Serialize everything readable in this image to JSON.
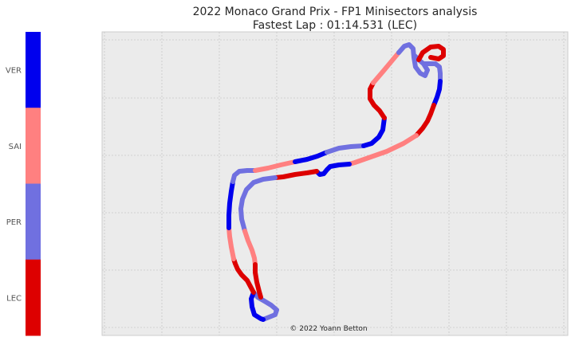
{
  "chart_data": {
    "type": "scatter",
    "title": "2022 Monaco Grand Prix - FP1 Minisectors analysis",
    "subtitle": "Fastest Lap : 01:14.531 (LEC)",
    "credit": "© 2022 Yoann Betton",
    "grid": true,
    "legend": "left colorbar",
    "drivers": [
      {
        "name": "VER",
        "color": "#0000ee"
      },
      {
        "name": "SAI",
        "color": "#ff8080"
      },
      {
        "name": "PER",
        "color": "#7070e0"
      },
      {
        "name": "LEC",
        "color": "#dd0000"
      }
    ],
    "colorbar_order_top_to_bottom": [
      "VER",
      "SAI",
      "PER",
      "LEC"
    ],
    "track_segments": [
      {
        "driver": "PER",
        "points": [
          [
            330,
            401
          ],
          [
            345,
            395
          ],
          [
            347,
            389
          ],
          [
            340,
            383
          ],
          [
            330,
            377
          ],
          [
            323,
            373
          ],
          [
            318,
            367
          ]
        ]
      },
      {
        "driver": "VER",
        "points": [
          [
            318,
            367
          ],
          [
            315,
            375
          ],
          [
            316,
            385
          ],
          [
            319,
            395
          ],
          [
            327,
            400
          ],
          [
            330,
            401
          ]
        ]
      },
      {
        "driver": "LEC",
        "points": [
          [
            318,
            367
          ],
          [
            310,
            352
          ],
          [
            303,
            345
          ],
          [
            298,
            338
          ],
          [
            295,
            331
          ],
          [
            293,
            325
          ]
        ]
      },
      {
        "driver": "SAI",
        "points": [
          [
            293,
            325
          ],
          [
            290,
            310
          ],
          [
            288,
            297
          ],
          [
            287,
            286
          ]
        ]
      },
      {
        "driver": "VER",
        "points": [
          [
            287,
            286
          ],
          [
            287,
            270
          ],
          [
            288,
            255
          ],
          [
            290,
            240
          ],
          [
            292,
            228
          ]
        ]
      },
      {
        "driver": "PER",
        "points": [
          [
            292,
            228
          ],
          [
            294,
            220
          ],
          [
            300,
            215
          ],
          [
            310,
            214
          ],
          [
            320,
            214
          ]
        ]
      },
      {
        "driver": "SAI",
        "points": [
          [
            320,
            214
          ],
          [
            336,
            211
          ],
          [
            352,
            207
          ],
          [
            370,
            203
          ]
        ]
      },
      {
        "driver": "VER",
        "points": [
          [
            370,
            203
          ],
          [
            385,
            200
          ],
          [
            398,
            196
          ],
          [
            410,
            191
          ]
        ]
      },
      {
        "driver": "PER",
        "points": [
          [
            410,
            191
          ],
          [
            425,
            186
          ],
          [
            440,
            184
          ],
          [
            456,
            183
          ]
        ]
      },
      {
        "driver": "VER",
        "points": [
          [
            456,
            183
          ],
          [
            466,
            180
          ],
          [
            475,
            172
          ],
          [
            480,
            163
          ],
          [
            482,
            148
          ]
        ]
      },
      {
        "driver": "LEC",
        "points": [
          [
            482,
            148
          ],
          [
            476,
            139
          ],
          [
            469,
            132
          ],
          [
            464,
            124
          ],
          [
            464,
            112
          ],
          [
            468,
            104
          ]
        ]
      },
      {
        "driver": "SAI",
        "points": [
          [
            468,
            104
          ],
          [
            480,
            90
          ],
          [
            490,
            78
          ],
          [
            500,
            66
          ]
        ]
      },
      {
        "driver": "PER",
        "points": [
          [
            500,
            66
          ],
          [
            507,
            58
          ],
          [
            513,
            56
          ],
          [
            518,
            61
          ],
          [
            519,
            72
          ],
          [
            521,
            84
          ],
          [
            527,
            92
          ],
          [
            533,
            95
          ],
          [
            536,
            88
          ],
          [
            531,
            80
          ],
          [
            525,
            75
          ],
          [
            520,
            70
          ]
        ]
      },
      {
        "driver": "PER",
        "points": [
          [
            531,
            80
          ],
          [
            538,
            80
          ],
          [
            546,
            80
          ],
          [
            551,
            84
          ],
          [
            552,
            92
          ],
          [
            552,
            102
          ]
        ]
      },
      {
        "driver": "LEC",
        "points": [
          [
            525,
            75
          ],
          [
            530,
            66
          ],
          [
            540,
            59
          ],
          [
            550,
            58
          ],
          [
            556,
            62
          ],
          [
            556,
            70
          ],
          [
            550,
            74
          ],
          [
            540,
            72
          ]
        ]
      },
      {
        "driver": "VER",
        "points": [
          [
            552,
            102
          ],
          [
            551,
            112
          ],
          [
            548,
            122
          ],
          [
            544,
            132
          ]
        ]
      },
      {
        "driver": "LEC",
        "points": [
          [
            544,
            132
          ],
          [
            540,
            143
          ],
          [
            536,
            152
          ],
          [
            530,
            161
          ],
          [
            522,
            170
          ]
        ]
      },
      {
        "driver": "SAI",
        "points": [
          [
            522,
            170
          ],
          [
            506,
            180
          ],
          [
            485,
            190
          ],
          [
            465,
            197
          ],
          [
            445,
            204
          ],
          [
            438,
            206
          ]
        ]
      },
      {
        "driver": "VER",
        "points": [
          [
            438,
            206
          ],
          [
            425,
            207
          ],
          [
            414,
            209
          ],
          [
            410,
            213
          ],
          [
            406,
            218
          ],
          [
            401,
            219
          ],
          [
            397,
            215
          ]
        ]
      },
      {
        "driver": "LEC",
        "points": [
          [
            397,
            215
          ],
          [
            385,
            217
          ],
          [
            370,
            219
          ],
          [
            355,
            222
          ],
          [
            345,
            223
          ]
        ]
      },
      {
        "driver": "PER",
        "points": [
          [
            345,
            223
          ],
          [
            330,
            225
          ],
          [
            318,
            229
          ],
          [
            309,
            238
          ],
          [
            304,
            250
          ],
          [
            302,
            262
          ],
          [
            303,
            275
          ],
          [
            307,
            290
          ]
        ]
      },
      {
        "driver": "SAI",
        "points": [
          [
            307,
            290
          ],
          [
            311,
            302
          ],
          [
            316,
            314
          ],
          [
            319,
            324
          ],
          [
            320,
            332
          ]
        ]
      },
      {
        "driver": "LEC",
        "points": [
          [
            320,
            332
          ],
          [
            320,
            342
          ],
          [
            322,
            354
          ],
          [
            325,
            366
          ],
          [
            327,
            373
          ]
        ]
      }
    ]
  }
}
